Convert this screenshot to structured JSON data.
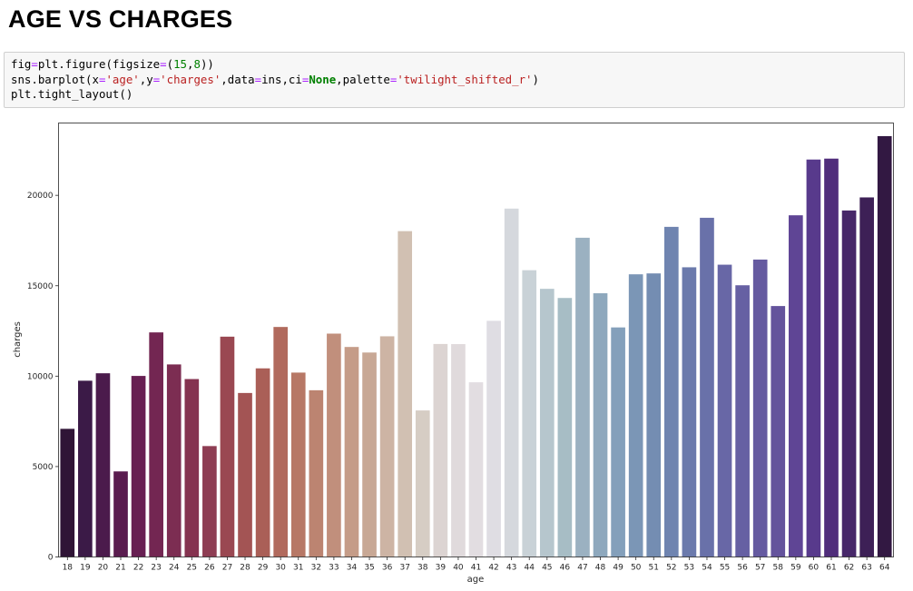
{
  "page": {
    "title": "AGE VS CHARGES"
  },
  "code_cell": {
    "lines": [
      "fig=plt.figure(figsize=(15,8))",
      "sns.barplot(x='age',y='charges',data=ins,ci=None,palette='twilight_shifted_r')",
      "plt.tight_layout()"
    ]
  },
  "chart_data": {
    "type": "bar",
    "title": "",
    "xlabel": "age",
    "ylabel": "charges",
    "ylim": [
      0,
      24000
    ],
    "yticks": [
      0,
      5000,
      10000,
      15000,
      20000
    ],
    "grid": false,
    "categories": [
      "18",
      "19",
      "20",
      "21",
      "22",
      "23",
      "24",
      "25",
      "26",
      "27",
      "28",
      "29",
      "30",
      "31",
      "32",
      "33",
      "34",
      "35",
      "36",
      "37",
      "38",
      "39",
      "40",
      "41",
      "42",
      "43",
      "44",
      "45",
      "46",
      "47",
      "48",
      "49",
      "50",
      "51",
      "52",
      "53",
      "54",
      "55",
      "56",
      "57",
      "58",
      "59",
      "60",
      "61",
      "62",
      "63",
      "64"
    ],
    "values": [
      7086,
      9747,
      10159,
      4731,
      10012,
      12420,
      10649,
      9839,
      6133,
      12184,
      9069,
      10431,
      12720,
      10197,
      9220,
      12352,
      11614,
      11307,
      12204,
      18020,
      8103,
      11779,
      11772,
      9660,
      13061,
      19266,
      15859,
      14830,
      14323,
      17654,
      14585,
      12695,
      15632,
      15682,
      18257,
      16021,
      18758,
      16164,
      15026,
      16448,
      13878,
      18896,
      21980,
      22031,
      19163,
      19885,
      23275
    ],
    "colors": [
      "#2f1436",
      "#3b1a47",
      "#4b1b4c",
      "#5a1c4f",
      "#671f52",
      "#732652",
      "#7c2d52",
      "#853350",
      "#8e3d53",
      "#9a4852",
      "#a35454",
      "#aa5f57",
      "#b16a5d",
      "#b77866",
      "#bc8471",
      "#c18f7c",
      "#c59c88",
      "#c8a895",
      "#cdb4a4",
      "#d1c0b2",
      "#d6cdc4",
      "#dcd4d2",
      "#e0dadc",
      "#e2dde1",
      "#dfdde3",
      "#d5d8dd",
      "#c9d2d7",
      "#b6c6cd",
      "#a7bdc5",
      "#9bb1c1",
      "#8ea8bd",
      "#84a0bb",
      "#7b96b6",
      "#748db2",
      "#6f84b0",
      "#6b7aac",
      "#6971a9",
      "#6867a6",
      "#6660a3",
      "#655aa0",
      "#64539c",
      "#5f4595",
      "#583a8c",
      "#502d7b",
      "#472769",
      "#3d2056",
      "#321842"
    ]
  }
}
